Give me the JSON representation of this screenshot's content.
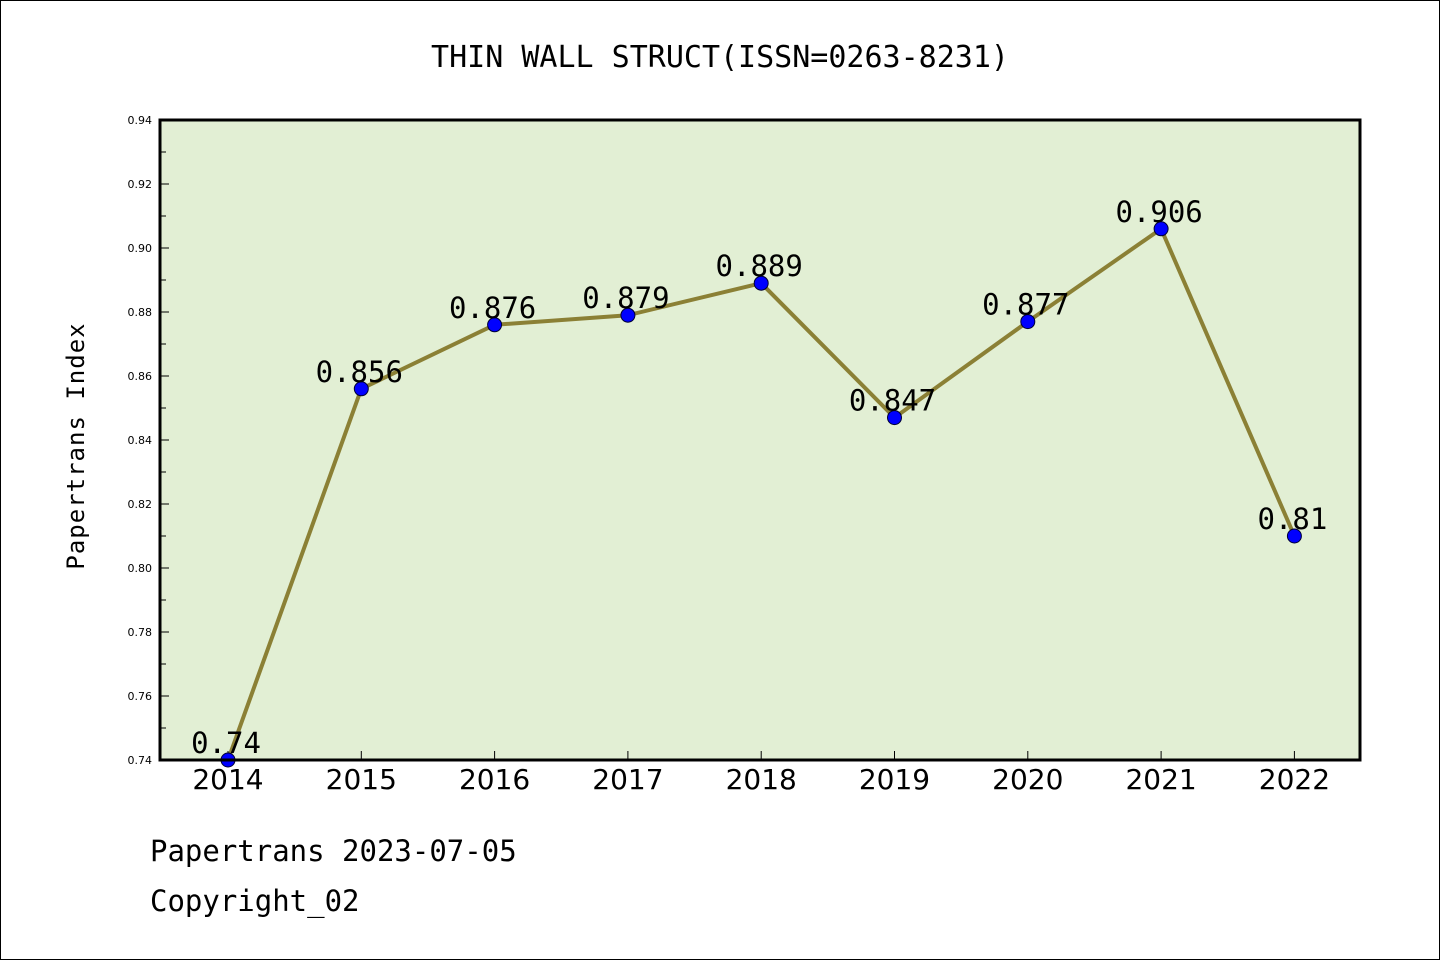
{
  "chart_data": {
    "type": "line",
    "title": "THIN WALL STRUCT(ISSN=0263-8231)",
    "xlabel": "",
    "ylabel": "Papertrans Index",
    "categories": [
      "2014",
      "2015",
      "2016",
      "2017",
      "2018",
      "2019",
      "2020",
      "2021",
      "2022"
    ],
    "series": [
      {
        "values": [
          0.74,
          0.856,
          0.876,
          0.879,
          0.889,
          0.847,
          0.877,
          0.906,
          0.81
        ]
      }
    ],
    "data_labels": [
      "0.74",
      "0.856",
      "0.876",
      "0.879",
      "0.889",
      "0.847",
      "0.877",
      "0.906",
      "0.81"
    ],
    "ylim": [
      0.74,
      0.94
    ],
    "yticks": [
      "0.74",
      "0.76",
      "0.78",
      "0.80",
      "0.82",
      "0.84",
      "0.86",
      "0.88",
      "0.90",
      "0.92",
      "0.94"
    ],
    "grid": false,
    "legend": "none",
    "colors": {
      "plot_background": "#e2efd4",
      "line": "#8b8035",
      "marker": "#0000ff",
      "frame": "#000000"
    }
  },
  "footer": {
    "line1": "Papertrans 2023-07-05",
    "line2": "Copyright_02"
  }
}
